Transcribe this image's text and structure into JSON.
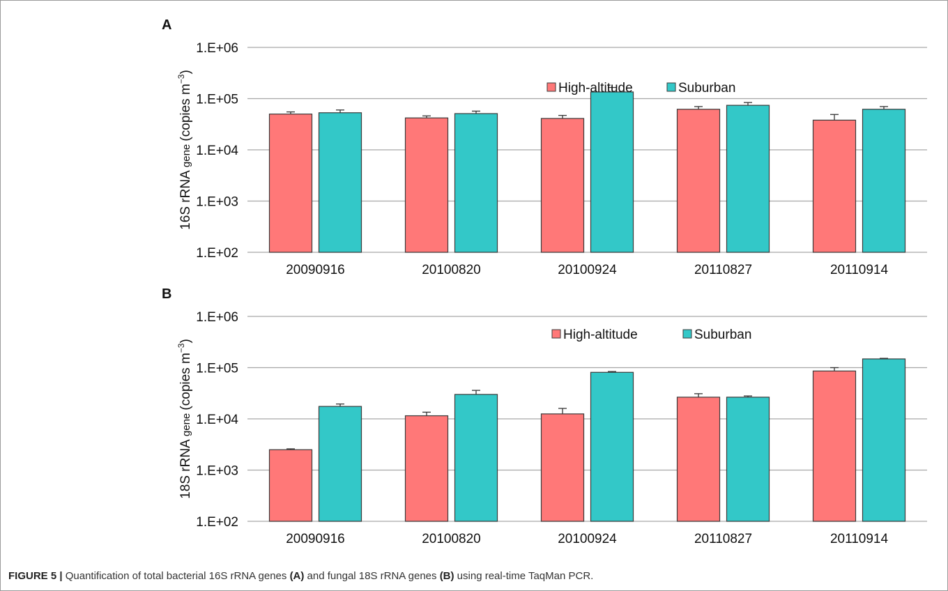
{
  "caption": {
    "label": "FIGURE 5 |",
    "text_1": " Quantification of total bacterial 16S rRNA genes ",
    "ref_a": "(A)",
    "text_2": " and fungal 18S rRNA genes ",
    "ref_b": "(B)",
    "text_3": " using real-time TaqMan PCR."
  },
  "colors": {
    "high_altitude": "#ff7878",
    "suburban": "#33c8c8",
    "grid": "#a6a6a6",
    "bar_edge": "#3a3a3a"
  },
  "chart_data": [
    {
      "panel": "A",
      "type": "bar",
      "yscale": "log",
      "ylabel_main": "16S rRNA",
      "ylabel_small": " gene ",
      "ylabel_unit": "(copies m",
      "ylabel_sup": "−3",
      "ylabel_close": ")",
      "ylim": [
        100,
        1000000
      ],
      "ytick_values": [
        100,
        1000,
        10000,
        100000,
        1000000
      ],
      "ytick_labels": [
        "1.E+02",
        "1.E+03",
        "1.E+04",
        "1.E+05",
        "1.E+06"
      ],
      "categories": [
        "20090916",
        "20100820",
        "20100924",
        "20110827",
        "20110914"
      ],
      "legend_position": "top-right",
      "series": [
        {
          "name": "High-altitude",
          "values": [
            50000,
            42000,
            41000,
            62000,
            38000
          ],
          "errors": [
            55000,
            46000,
            47000,
            70000,
            49000
          ]
        },
        {
          "name": "Suburban",
          "values": [
            53000,
            51000,
            135000,
            74000,
            62000
          ],
          "errors": [
            60000,
            57000,
            165000,
            84000,
            70000
          ]
        }
      ]
    },
    {
      "panel": "B",
      "type": "bar",
      "yscale": "log",
      "ylabel_main": "18S rRNA",
      "ylabel_small": " gene ",
      "ylabel_unit": "(copies m",
      "ylabel_sup": "−3",
      "ylabel_close": ")",
      "ylim": [
        100,
        1000000
      ],
      "ytick_values": [
        100,
        1000,
        10000,
        100000,
        1000000
      ],
      "ytick_labels": [
        "1.E+02",
        "1.E+03",
        "1.E+04",
        "1.E+05",
        "1.E+06"
      ],
      "categories": [
        "20090916",
        "20100820",
        "20100924",
        "20110827",
        "20110914"
      ],
      "legend_position": "top-right",
      "series": [
        {
          "name": "High-altitude",
          "values": [
            2500,
            11500,
            12500,
            26500,
            86000
          ],
          "errors": [
            2600,
            13500,
            16000,
            31000,
            100000
          ]
        },
        {
          "name": "Suburban",
          "values": [
            17500,
            30000,
            81000,
            26500,
            148000
          ],
          "errors": [
            19500,
            36000,
            84000,
            28000,
            152000
          ]
        }
      ]
    }
  ]
}
